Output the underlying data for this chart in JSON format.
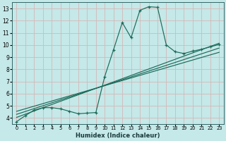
{
  "xlabel": "Humidex (Indice chaleur)",
  "ylabel": "",
  "xlim": [
    -0.5,
    23.5
  ],
  "ylim": [
    3.5,
    13.5
  ],
  "xticks": [
    0,
    1,
    2,
    3,
    4,
    5,
    6,
    7,
    8,
    9,
    10,
    11,
    12,
    13,
    14,
    15,
    16,
    17,
    18,
    19,
    20,
    21,
    22,
    23
  ],
  "yticks": [
    4,
    5,
    6,
    7,
    8,
    9,
    10,
    11,
    12,
    13
  ],
  "bg_color": "#c5e8e8",
  "grid_color": "#aacfcf",
  "line_color": "#1a6b5a",
  "curve_x": [
    0,
    1,
    2,
    3,
    4,
    5,
    6,
    7,
    8,
    9,
    10,
    11,
    12,
    13,
    14,
    15,
    16,
    17,
    18,
    19,
    20,
    21,
    22,
    23
  ],
  "curve_y": [
    3.7,
    4.2,
    4.65,
    4.85,
    4.85,
    4.75,
    4.55,
    4.35,
    4.4,
    4.45,
    7.4,
    9.6,
    11.85,
    10.6,
    12.85,
    13.15,
    13.1,
    10.0,
    9.45,
    9.3,
    9.5,
    9.65,
    9.85,
    10.05
  ],
  "line2_x": [
    0,
    23
  ],
  "line2_y": [
    4.05,
    10.15
  ],
  "line3_x": [
    0,
    23
  ],
  "line3_y": [
    4.3,
    9.75
  ],
  "line4_x": [
    0,
    23
  ],
  "line4_y": [
    4.55,
    9.4
  ]
}
